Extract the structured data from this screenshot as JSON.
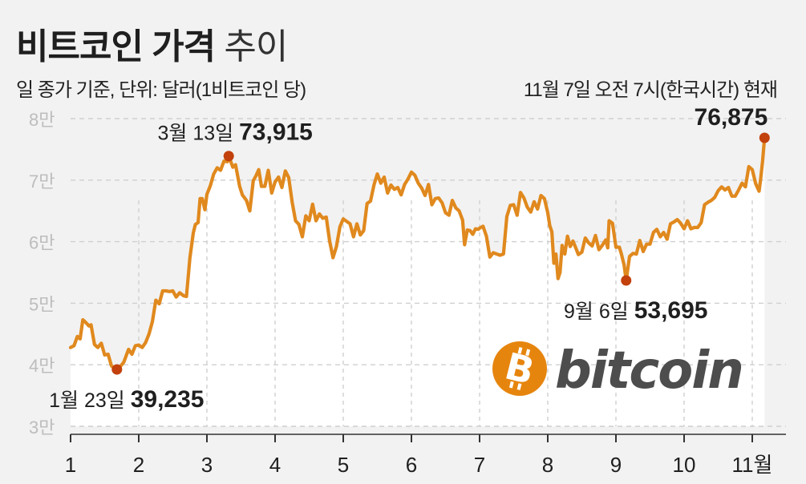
{
  "title_bold": "비트코인 가격",
  "title_light": "추이",
  "subtitle": "일 종가 기준, 단위: 달러(1비트코인 당)",
  "note": "11월 7일 오전 7시(한국시간) 현재",
  "logo": {
    "text": "bitcoin",
    "icon": "bitcoin-icon",
    "color": "#e6850e",
    "text_color": "#4d4d4d"
  },
  "colors": {
    "line": "#e0891e",
    "fill": "#ffffff",
    "marker": "#c2410c",
    "grid": "#cfcfcf",
    "axis_text": "#bdbdbd"
  },
  "chart_data": {
    "type": "area",
    "title": "비트코인 가격 추이",
    "ylabel": "단위: 달러(1비트코인 당)",
    "ylim": [
      30000,
      80000
    ],
    "y_ticks": [
      {
        "value": 30000,
        "label": "3만"
      },
      {
        "value": 40000,
        "label": "4만"
      },
      {
        "value": 50000,
        "label": "5만"
      },
      {
        "value": 60000,
        "label": "6만"
      },
      {
        "value": 70000,
        "label": "7만"
      },
      {
        "value": 80000,
        "label": "8만"
      }
    ],
    "xlim": [
      1,
      11.2
    ],
    "x_ticks": [
      {
        "value": 1,
        "label": "1"
      },
      {
        "value": 2,
        "label": "2"
      },
      {
        "value": 3,
        "label": "3"
      },
      {
        "value": 4,
        "label": "4"
      },
      {
        "value": 5,
        "label": "5"
      },
      {
        "value": 6,
        "label": "6"
      },
      {
        "value": 7,
        "label": "7"
      },
      {
        "value": 8,
        "label": "8"
      },
      {
        "value": 9,
        "label": "9"
      },
      {
        "value": 10,
        "label": "10"
      },
      {
        "value": 11,
        "label": "11월"
      }
    ],
    "series": [
      {
        "points": [
          [
            1.0,
            42800
          ],
          [
            1.05,
            43100
          ],
          [
            1.1,
            44600
          ],
          [
            1.14,
            44200
          ],
          [
            1.18,
            47300
          ],
          [
            1.22,
            46900
          ],
          [
            1.27,
            46300
          ],
          [
            1.3,
            46500
          ],
          [
            1.35,
            43300
          ],
          [
            1.4,
            42800
          ],
          [
            1.45,
            43500
          ],
          [
            1.5,
            41600
          ],
          [
            1.55,
            41700
          ],
          [
            1.6,
            39800
          ],
          [
            1.68,
            39235
          ],
          [
            1.72,
            39600
          ],
          [
            1.78,
            40400
          ],
          [
            1.85,
            42500
          ],
          [
            1.9,
            41700
          ],
          [
            1.95,
            43100
          ],
          [
            2.0,
            43200
          ],
          [
            2.05,
            42800
          ],
          [
            2.1,
            43600
          ],
          [
            2.15,
            45000
          ],
          [
            2.2,
            47000
          ],
          [
            2.25,
            50500
          ],
          [
            2.3,
            49900
          ],
          [
            2.35,
            52000
          ],
          [
            2.4,
            52000
          ],
          [
            2.45,
            51900
          ],
          [
            2.5,
            52000
          ],
          [
            2.55,
            51000
          ],
          [
            2.6,
            51700
          ],
          [
            2.66,
            51200
          ],
          [
            2.7,
            51100
          ],
          [
            2.75,
            57400
          ],
          [
            2.8,
            61400
          ],
          [
            2.83,
            62800
          ],
          [
            2.87,
            63100
          ],
          [
            2.9,
            67000
          ],
          [
            2.93,
            67000
          ],
          [
            2.97,
            65200
          ],
          [
            3.0,
            67700
          ],
          [
            3.05,
            69100
          ],
          [
            3.1,
            71000
          ],
          [
            3.15,
            72000
          ],
          [
            3.2,
            71600
          ],
          [
            3.25,
            73100
          ],
          [
            3.3,
            73000
          ],
          [
            3.32,
            73915
          ],
          [
            3.38,
            72100
          ],
          [
            3.42,
            72500
          ],
          [
            3.48,
            69000
          ],
          [
            3.52,
            67600
          ],
          [
            3.58,
            66700
          ],
          [
            3.63,
            65000
          ],
          [
            3.68,
            69900
          ],
          [
            3.72,
            70700
          ],
          [
            3.76,
            71700
          ],
          [
            3.8,
            69000
          ],
          [
            3.85,
            69000
          ],
          [
            3.9,
            71600
          ],
          [
            3.95,
            67900
          ],
          [
            4.0,
            69700
          ],
          [
            4.05,
            70500
          ],
          [
            4.1,
            68800
          ],
          [
            4.15,
            71500
          ],
          [
            4.2,
            70400
          ],
          [
            4.25,
            66400
          ],
          [
            4.3,
            63400
          ],
          [
            4.35,
            62800
          ],
          [
            4.4,
            60800
          ],
          [
            4.45,
            64200
          ],
          [
            4.5,
            63400
          ],
          [
            4.55,
            66100
          ],
          [
            4.6,
            63400
          ],
          [
            4.65,
            64500
          ],
          [
            4.7,
            63800
          ],
          [
            4.75,
            64000
          ],
          [
            4.8,
            60100
          ],
          [
            4.85,
            57400
          ],
          [
            4.9,
            59200
          ],
          [
            4.95,
            62400
          ],
          [
            5.0,
            63700
          ],
          [
            5.05,
            63300
          ],
          [
            5.1,
            62900
          ],
          [
            5.15,
            60800
          ],
          [
            5.2,
            62900
          ],
          [
            5.25,
            61100
          ],
          [
            5.3,
            61800
          ],
          [
            5.35,
            66200
          ],
          [
            5.4,
            66600
          ],
          [
            5.45,
            69200
          ],
          [
            5.5,
            71000
          ],
          [
            5.55,
            69500
          ],
          [
            5.6,
            70500
          ],
          [
            5.65,
            67900
          ],
          [
            5.7,
            69200
          ],
          [
            5.75,
            68500
          ],
          [
            5.8,
            68800
          ],
          [
            5.85,
            67600
          ],
          [
            5.9,
            69300
          ],
          [
            5.95,
            70200
          ],
          [
            6.0,
            71300
          ],
          [
            6.05,
            70800
          ],
          [
            6.1,
            69500
          ],
          [
            6.15,
            68700
          ],
          [
            6.2,
            67500
          ],
          [
            6.25,
            69300
          ],
          [
            6.3,
            66000
          ],
          [
            6.35,
            67000
          ],
          [
            6.4,
            67100
          ],
          [
            6.45,
            66300
          ],
          [
            6.5,
            64700
          ],
          [
            6.55,
            64300
          ],
          [
            6.6,
            66700
          ],
          [
            6.65,
            65500
          ],
          [
            6.7,
            65000
          ],
          [
            6.75,
            63500
          ],
          [
            6.78,
            59500
          ],
          [
            6.82,
            61900
          ],
          [
            6.86,
            61800
          ],
          [
            6.9,
            61200
          ],
          [
            6.94,
            62100
          ],
          [
            6.98,
            62000
          ],
          [
            7.0,
            62200
          ],
          [
            7.05,
            62500
          ],
          [
            7.1,
            60900
          ],
          [
            7.15,
            57500
          ],
          [
            7.2,
            58200
          ],
          [
            7.25,
            58000
          ],
          [
            7.3,
            57800
          ],
          [
            7.35,
            58000
          ],
          [
            7.4,
            64100
          ],
          [
            7.45,
            65900
          ],
          [
            7.5,
            66000
          ],
          [
            7.55,
            64300
          ],
          [
            7.6,
            68000
          ],
          [
            7.65,
            67100
          ],
          [
            7.7,
            65600
          ],
          [
            7.75,
            64800
          ],
          [
            7.8,
            66500
          ],
          [
            7.85,
            65300
          ],
          [
            7.9,
            67500
          ],
          [
            7.95,
            67000
          ],
          [
            8.0,
            64700
          ],
          [
            8.03,
            62600
          ],
          [
            8.06,
            61600
          ],
          [
            8.09,
            56500
          ],
          [
            8.12,
            58000
          ],
          [
            8.15,
            54000
          ],
          [
            8.18,
            55000
          ],
          [
            8.21,
            59400
          ],
          [
            8.25,
            58000
          ],
          [
            8.29,
            60900
          ],
          [
            8.33,
            59200
          ],
          [
            8.37,
            60100
          ],
          [
            8.41,
            59000
          ],
          [
            8.45,
            57900
          ],
          [
            8.5,
            58300
          ],
          [
            8.55,
            60600
          ],
          [
            8.6,
            59800
          ],
          [
            8.65,
            59300
          ],
          [
            8.7,
            61000
          ],
          [
            8.75,
            58700
          ],
          [
            8.8,
            59400
          ],
          [
            8.85,
            60300
          ],
          [
            8.88,
            59000
          ],
          [
            8.9,
            63400
          ],
          [
            8.95,
            63000
          ],
          [
            9.0,
            59100
          ],
          [
            9.05,
            59100
          ],
          [
            9.08,
            58000
          ],
          [
            9.12,
            56200
          ],
          [
            9.15,
            53695
          ],
          [
            9.2,
            57600
          ],
          [
            9.25,
            58100
          ],
          [
            9.3,
            58000
          ],
          [
            9.35,
            60200
          ],
          [
            9.4,
            58400
          ],
          [
            9.45,
            59600
          ],
          [
            9.5,
            59600
          ],
          [
            9.55,
            61500
          ],
          [
            9.6,
            62000
          ],
          [
            9.65,
            60800
          ],
          [
            9.7,
            61500
          ],
          [
            9.75,
            60400
          ],
          [
            9.8,
            62900
          ],
          [
            9.85,
            63200
          ],
          [
            9.9,
            63600
          ],
          [
            9.95,
            63000
          ],
          [
            10.0,
            62100
          ],
          [
            10.05,
            63400
          ],
          [
            10.1,
            62100
          ],
          [
            10.15,
            62300
          ],
          [
            10.2,
            62300
          ],
          [
            10.25,
            63100
          ],
          [
            10.3,
            66000
          ],
          [
            10.35,
            66400
          ],
          [
            10.4,
            66700
          ],
          [
            10.45,
            67200
          ],
          [
            10.5,
            68300
          ],
          [
            10.55,
            68900
          ],
          [
            10.6,
            68400
          ],
          [
            10.65,
            68800
          ],
          [
            10.7,
            67400
          ],
          [
            10.75,
            67400
          ],
          [
            10.8,
            68400
          ],
          [
            10.85,
            69500
          ],
          [
            10.9,
            68900
          ],
          [
            10.95,
            72200
          ],
          [
            11.0,
            71700
          ],
          [
            11.05,
            69400
          ],
          [
            11.1,
            68200
          ],
          [
            11.12,
            69900
          ],
          [
            11.15,
            73000
          ],
          [
            11.18,
            76875
          ]
        ]
      }
    ],
    "annotations": [
      {
        "x": 1.68,
        "y": 39235,
        "date_text": "1월 23일",
        "value_text": "39,235",
        "position": "below"
      },
      {
        "x": 3.32,
        "y": 73915,
        "date_text": "3월 13일",
        "value_text": "73,915",
        "position": "above"
      },
      {
        "x": 9.15,
        "y": 53695,
        "date_text": "9월 6일",
        "value_text": "53,695",
        "position": "below"
      },
      {
        "x": 11.18,
        "y": 76875,
        "date_text": "",
        "value_text": "76,875",
        "position": "above"
      }
    ]
  }
}
